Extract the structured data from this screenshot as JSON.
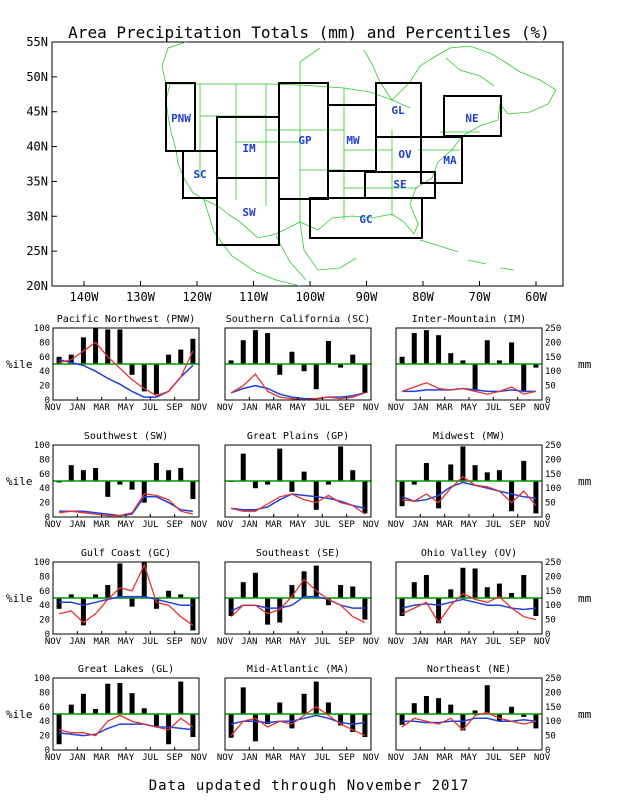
{
  "title": "Area Precipitation Totals (mm) and Percentiles (%)",
  "footer": "Data updated through November 2017",
  "map": {
    "lat_ticks": [
      "55N",
      "50N",
      "45N",
      "40N",
      "35N",
      "30N",
      "25N",
      "20N"
    ],
    "lon_ticks": [
      "140W",
      "130W",
      "120W",
      "110W",
      "100W",
      "90W",
      "80W",
      "70W",
      "60W"
    ],
    "regions": [
      "PNW",
      "SC",
      "IM",
      "SW",
      "GP",
      "MW",
      "GL",
      "OV",
      "SE",
      "GC",
      "MA",
      "NE"
    ]
  },
  "axes": {
    "pct_ticks": [
      "100",
      "80",
      "60",
      "40",
      "20",
      "0"
    ],
    "mm_ticks": [
      "250",
      "200",
      "150",
      "100",
      "50",
      "0"
    ],
    "pct_label": "%ile",
    "mm_label": "mm",
    "months": [
      "NOV",
      "JAN",
      "MAR",
      "MAY",
      "JUL",
      "SEP",
      "NOV"
    ]
  },
  "colors": {
    "bars": "#000000",
    "percentile_line": "#009900",
    "precip_line": "#e8322f",
    "normal_line": "#2140e0",
    "map_lines": "#2ecc2e",
    "region_label": "#1f3fd6"
  },
  "chart_data": [
    {
      "type": "bar",
      "title": "Pacific Northwest (PNW)",
      "percentile": [
        60,
        63,
        87,
        100,
        98,
        98,
        35,
        12,
        8,
        63,
        70,
        85
      ],
      "precip_mm": [
        130,
        140,
        170,
        200,
        150,
        110,
        70,
        40,
        15,
        30,
        80,
        170
      ],
      "normal_mm": [
        140,
        130,
        120,
        100,
        75,
        55,
        30,
        10,
        10,
        30,
        80,
        120
      ]
    },
    {
      "type": "bar",
      "title": "Southern California (SC)",
      "percentile": [
        55,
        83,
        97,
        93,
        35,
        67,
        40,
        15,
        82,
        45,
        63,
        10
      ],
      "precip_mm": [
        25,
        50,
        90,
        30,
        10,
        5,
        0,
        5,
        10,
        5,
        10,
        25
      ],
      "normal_mm": [
        25,
        40,
        50,
        40,
        20,
        10,
        5,
        5,
        10,
        10,
        15,
        25
      ]
    },
    {
      "type": "bar",
      "title": "Inter-Mountain (IM)",
      "percentile": [
        60,
        93,
        97,
        90,
        65,
        55,
        13,
        83,
        55,
        80,
        13,
        45
      ],
      "precip_mm": [
        30,
        45,
        60,
        40,
        35,
        40,
        30,
        20,
        30,
        45,
        20,
        30
      ],
      "normal_mm": [
        30,
        30,
        35,
        35,
        35,
        40,
        35,
        30,
        30,
        35,
        30,
        30
      ]
    },
    {
      "type": "bar",
      "title": "Southwest (SW)",
      "percentile": [
        48,
        72,
        65,
        68,
        28,
        45,
        38,
        20,
        75,
        65,
        68,
        25
      ],
      "precip_mm": [
        15,
        20,
        15,
        10,
        5,
        5,
        15,
        80,
        75,
        60,
        20,
        10
      ],
      "normal_mm": [
        20,
        20,
        20,
        15,
        10,
        5,
        10,
        70,
        70,
        50,
        25,
        20
      ]
    },
    {
      "type": "bar",
      "title": "Great Plains (GP)",
      "percentile": [
        50,
        88,
        40,
        45,
        95,
        35,
        63,
        10,
        45,
        98,
        65,
        5
      ],
      "precip_mm": [
        30,
        20,
        20,
        45,
        70,
        80,
        60,
        50,
        75,
        50,
        40,
        10
      ],
      "normal_mm": [
        30,
        25,
        25,
        35,
        60,
        80,
        75,
        70,
        65,
        55,
        40,
        30
      ]
    },
    {
      "type": "bar",
      "title": "Midwest (MW)",
      "percentile": [
        15,
        45,
        75,
        12,
        73,
        98,
        72,
        62,
        65,
        8,
        78,
        5
      ],
      "precip_mm": [
        60,
        55,
        80,
        50,
        100,
        140,
        110,
        105,
        90,
        50,
        90,
        40
      ],
      "normal_mm": [
        70,
        55,
        60,
        75,
        105,
        120,
        110,
        100,
        90,
        80,
        70,
        65
      ]
    },
    {
      "type": "bar",
      "title": "Gulf Coast (GC)",
      "percentile": [
        35,
        55,
        12,
        55,
        68,
        98,
        38,
        100,
        35,
        60,
        55,
        5
      ],
      "precip_mm": [
        70,
        80,
        40,
        70,
        120,
        160,
        150,
        240,
        110,
        100,
        60,
        30
      ],
      "normal_mm": [
        110,
        110,
        100,
        110,
        120,
        130,
        130,
        130,
        120,
        110,
        100,
        100
      ]
    },
    {
      "type": "bar",
      "title": "Southeast (SE)",
      "percentile": [
        25,
        72,
        85,
        13,
        16,
        68,
        87,
        95,
        40,
        68,
        66,
        20
      ],
      "precip_mm": [
        60,
        100,
        100,
        70,
        85,
        130,
        190,
        150,
        120,
        100,
        60,
        40
      ],
      "normal_mm": [
        80,
        100,
        100,
        90,
        90,
        100,
        130,
        130,
        120,
        100,
        90,
        90
      ]
    },
    {
      "type": "bar",
      "title": "Ohio Valley (OV)",
      "percentile": [
        25,
        72,
        82,
        15,
        62,
        92,
        91,
        65,
        70,
        57,
        82,
        25
      ],
      "precip_mm": [
        70,
        90,
        110,
        40,
        100,
        140,
        120,
        110,
        130,
        90,
        60,
        50
      ],
      "normal_mm": [
        90,
        100,
        105,
        100,
        110,
        120,
        110,
        100,
        100,
        90,
        85,
        90
      ]
    },
    {
      "type": "bar",
      "title": "Great Lakes (GL)",
      "percentile": [
        8,
        63,
        78,
        57,
        92,
        93,
        79,
        58,
        33,
        8,
        95,
        18
      ],
      "precip_mm": [
        70,
        60,
        60,
        50,
        100,
        120,
        100,
        90,
        80,
        70,
        110,
        80
      ],
      "normal_mm": [
        60,
        55,
        50,
        55,
        75,
        90,
        90,
        90,
        80,
        80,
        75,
        70
      ]
    },
    {
      "type": "bar",
      "title": "Mid-Atlantic (MA)",
      "percentile": [
        17,
        87,
        12,
        36,
        66,
        30,
        78,
        95,
        66,
        34,
        25,
        18
      ],
      "precip_mm": [
        50,
        100,
        110,
        80,
        100,
        90,
        120,
        150,
        120,
        90,
        70,
        50
      ],
      "normal_mm": [
        90,
        100,
        100,
        95,
        100,
        100,
        110,
        120,
        110,
        95,
        90,
        95
      ]
    },
    {
      "type": "bar",
      "title": "Northeast (NE)",
      "percentile": [
        35,
        65,
        75,
        72,
        63,
        27,
        55,
        90,
        40,
        60,
        46,
        30
      ],
      "precip_mm": [
        80,
        110,
        100,
        90,
        110,
        70,
        120,
        130,
        110,
        100,
        90,
        100
      ],
      "normal_mm": [
        100,
        100,
        95,
        95,
        100,
        100,
        110,
        110,
        100,
        100,
        105,
        100
      ]
    }
  ]
}
